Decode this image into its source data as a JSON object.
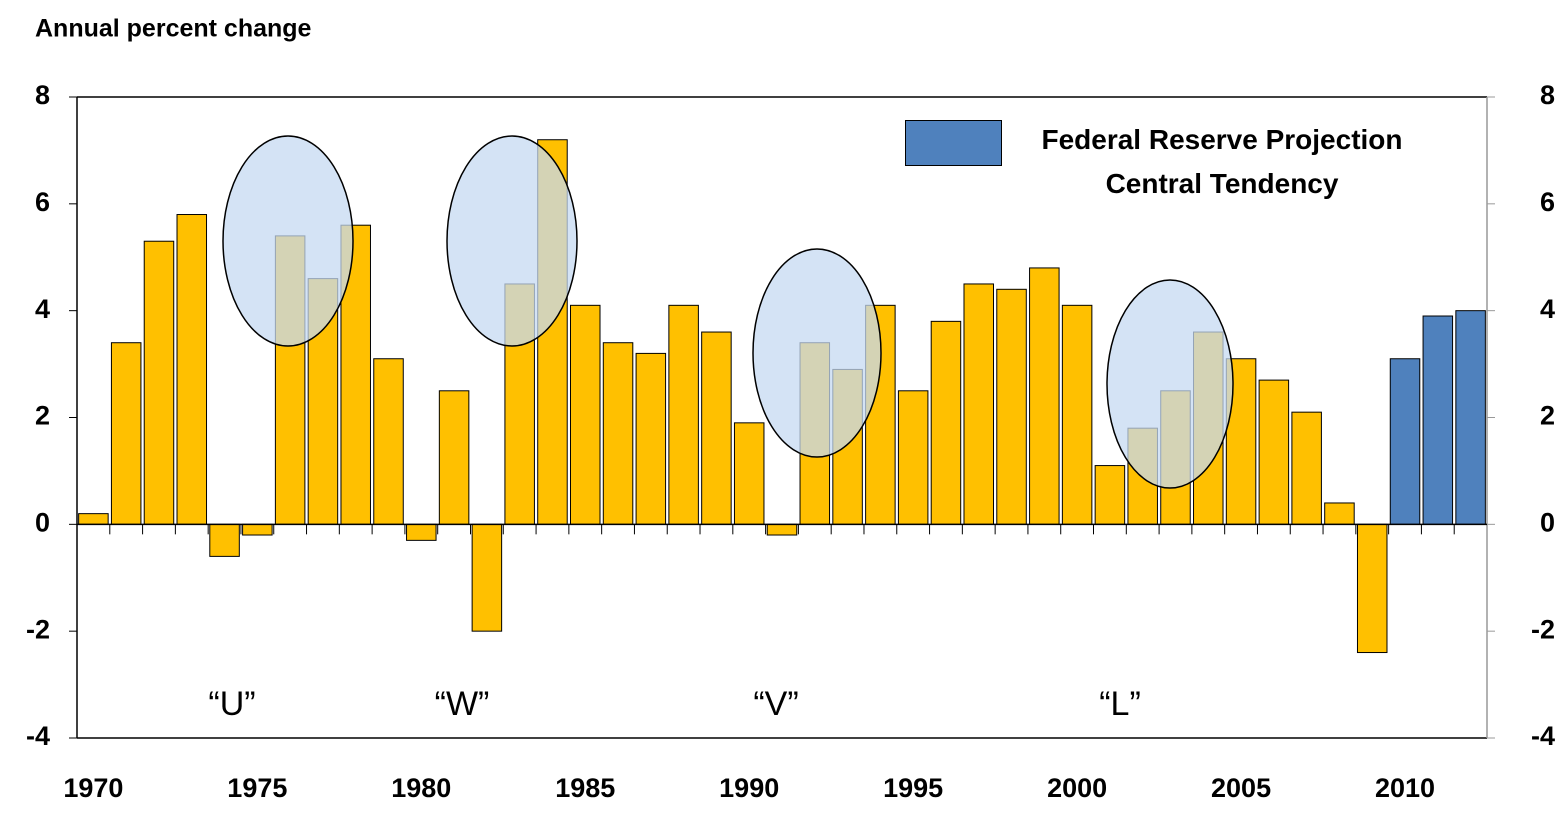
{
  "chart_data": {
    "type": "bar",
    "y_label": "Annual percent change",
    "categories": [
      "1970",
      null,
      null,
      null,
      null,
      "1975",
      null,
      null,
      null,
      null,
      "1980",
      null,
      null,
      null,
      null,
      "1985",
      null,
      null,
      null,
      null,
      "1990",
      null,
      null,
      null,
      null,
      "1995",
      null,
      null,
      null,
      null,
      "2000",
      null,
      null,
      null,
      null,
      "2005",
      null,
      null,
      null,
      null,
      "2010",
      null,
      null
    ],
    "series": [
      {
        "color": "#ffc000",
        "values": [
          0.2,
          3.4,
          5.3,
          5.8,
          -0.6,
          -0.2,
          5.4,
          4.6,
          5.6,
          3.1,
          -0.3,
          2.5,
          -2.0,
          4.5,
          7.2,
          4.1,
          3.4,
          3.2,
          4.1,
          3.6,
          1.9,
          -0.2,
          3.4,
          2.9,
          4.1,
          2.5,
          3.8,
          4.5,
          4.4,
          4.8,
          4.1,
          1.1,
          1.8,
          2.5,
          3.6,
          3.1,
          2.7,
          2.1,
          0.4,
          -2.4,
          null,
          null,
          null
        ]
      },
      {
        "name": "Federal Reserve Projection Central Tendency",
        "color": "#4f81bd",
        "values": [
          null,
          null,
          null,
          null,
          null,
          null,
          null,
          null,
          null,
          null,
          null,
          null,
          null,
          null,
          null,
          null,
          null,
          null,
          null,
          null,
          null,
          null,
          null,
          null,
          null,
          null,
          null,
          null,
          null,
          null,
          null,
          null,
          null,
          null,
          null,
          null,
          null,
          null,
          null,
          null,
          3.1,
          3.9,
          4.0
        ]
      }
    ],
    "ylim": [
      -4,
      8
    ],
    "yticks": [
      -4,
      -2,
      0,
      2,
      4,
      6,
      8
    ],
    "y2lim": [
      -4,
      8
    ],
    "y2ticks": [
      -4,
      -2,
      0,
      2,
      4,
      6,
      8
    ],
    "annotations": [
      "“U”",
      "“W”",
      "“V”",
      "“L”"
    ],
    "legend": "upper right"
  }
}
